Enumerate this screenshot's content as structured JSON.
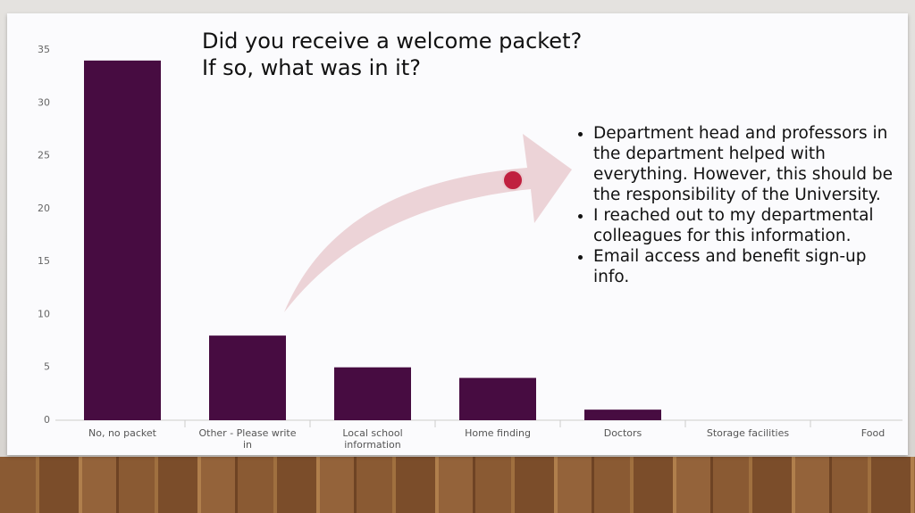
{
  "chart_data": {
    "type": "bar",
    "title": [
      "Did you receive a welcome packet?",
      "If so, what was in it?"
    ],
    "categories": [
      "No, no packet",
      "Other - Please write in",
      "Local school information",
      "Home finding",
      "Doctors",
      "Storage facilities",
      "Food"
    ],
    "values": [
      34,
      8,
      5,
      4,
      1,
      0,
      0
    ],
    "color": "#470c41",
    "ylim": [
      0,
      35
    ],
    "yticks": [
      0,
      5,
      10,
      15,
      20,
      25,
      30,
      35
    ],
    "grid": false,
    "annotations": [
      "Department head and professors in the department helped with everything. However, this should be the responsibility of the University.",
      "I reached out to my departmental colleagues for this information.",
      "Email access and benefit sign-up info."
    ]
  }
}
